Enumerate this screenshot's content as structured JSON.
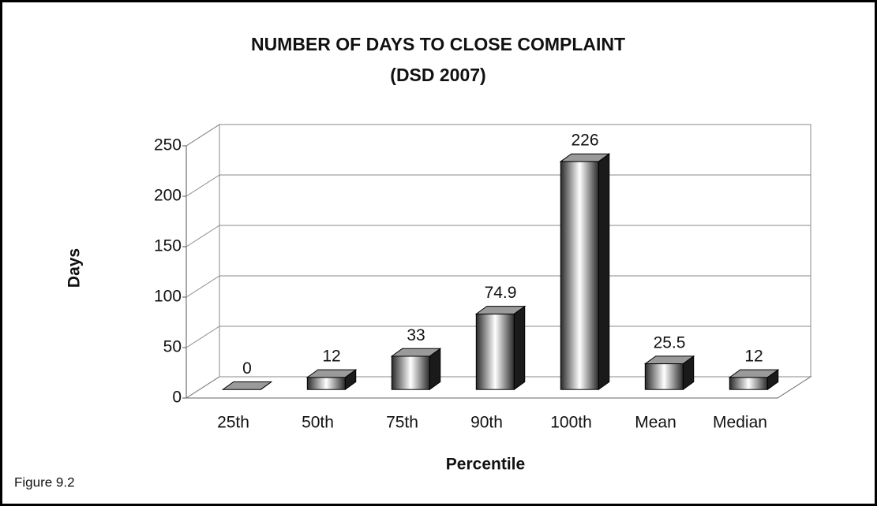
{
  "chart_data": {
    "type": "bar3d",
    "title": "NUMBER OF DAYS TO CLOSE COMPLAINT",
    "subtitle": "(DSD 2007)",
    "y_label": "Days",
    "x_label": "Percentile",
    "annotation": "Figure 9.2",
    "categories": [
      "25th",
      "50th",
      "75th",
      "90th",
      "100th",
      "Mean",
      "Median"
    ],
    "values": [
      0,
      12,
      33,
      74.9,
      226,
      25.5,
      12
    ],
    "color": "#2a2a2a",
    "ylim": [
      0,
      250
    ],
    "yticks": [
      0,
      50,
      100,
      150,
      200,
      250
    ],
    "grid": true
  }
}
